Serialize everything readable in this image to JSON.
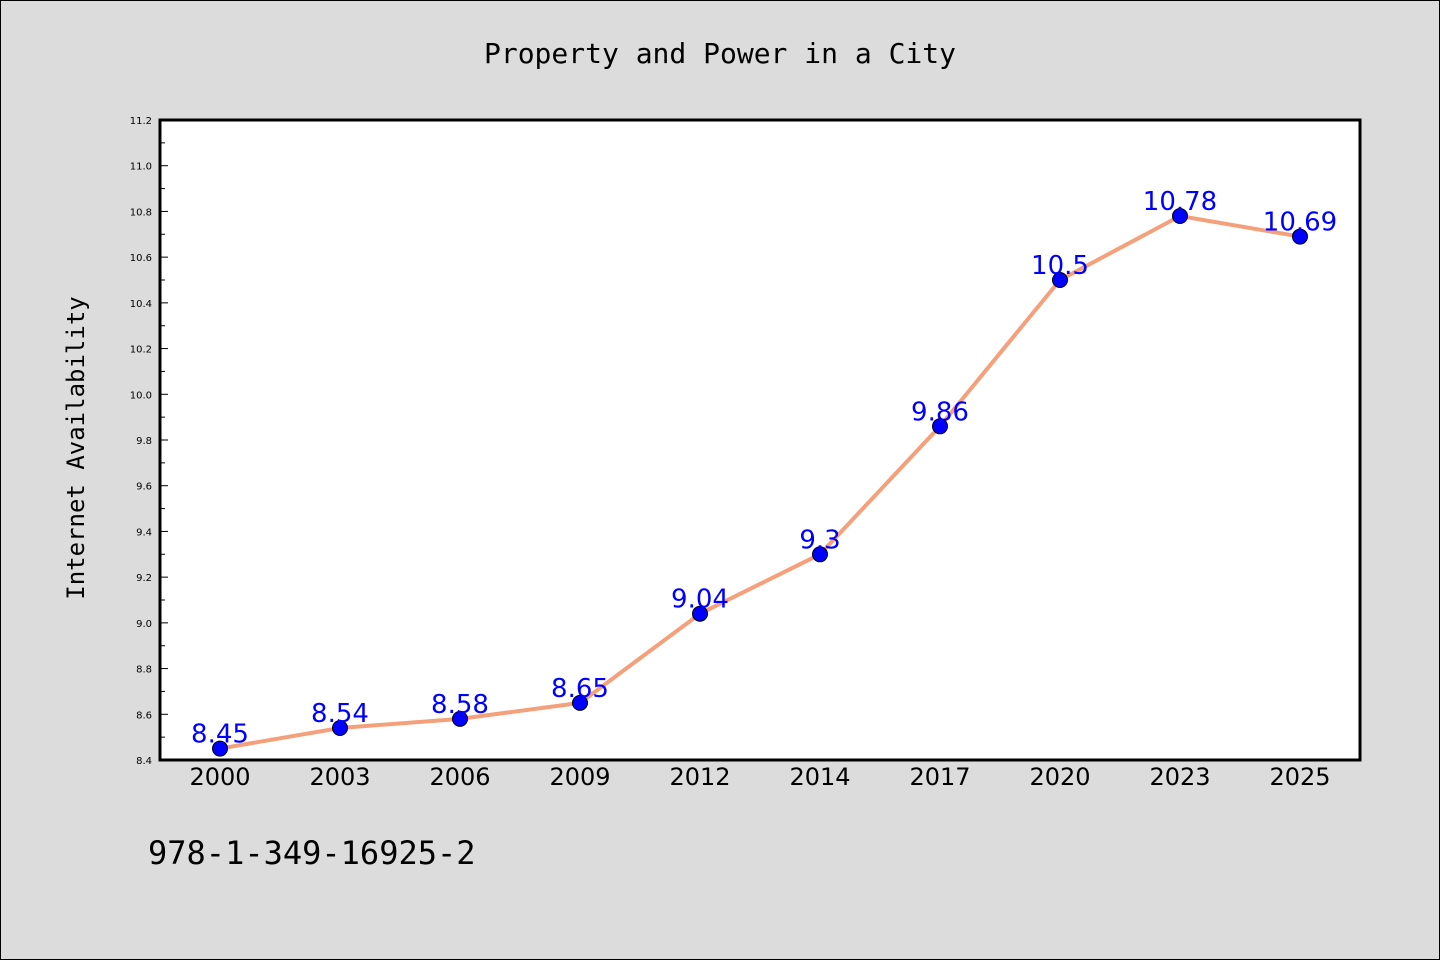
{
  "chart_data": {
    "type": "line",
    "title": "Property and Power in a City",
    "xlabel": "",
    "ylabel": "Internet Availability",
    "categories": [
      "2000",
      "2003",
      "2006",
      "2009",
      "2012",
      "2014",
      "2017",
      "2020",
      "2023",
      "2025"
    ],
    "series": [
      {
        "values": [
          8.45,
          8.54,
          8.58,
          8.65,
          9.04,
          9.3,
          9.86,
          10.5,
          10.78,
          10.69
        ],
        "data_labels": [
          "8.45",
          "8.54",
          "8.58",
          "8.65",
          "9.04",
          "9.3",
          "9.86",
          "10.5",
          "10.78",
          "10.69"
        ]
      }
    ],
    "ylim": [
      8.4,
      11.2
    ],
    "yticks": [
      "8.4",
      "8.6",
      "8.8",
      "9.0",
      "9.2",
      "9.4",
      "9.6",
      "9.8",
      "10.0",
      "10.2",
      "10.4",
      "10.6",
      "10.8",
      "11.0",
      "11.2"
    ],
    "grid": false,
    "line_color": "#f4a07a",
    "marker_color": "#0000ff",
    "label_color": "#0000ff"
  },
  "footer_text": "978-1-349-16925-2",
  "colors": {
    "background": "#dcdcdc",
    "plot_background": "#ffffff"
  }
}
